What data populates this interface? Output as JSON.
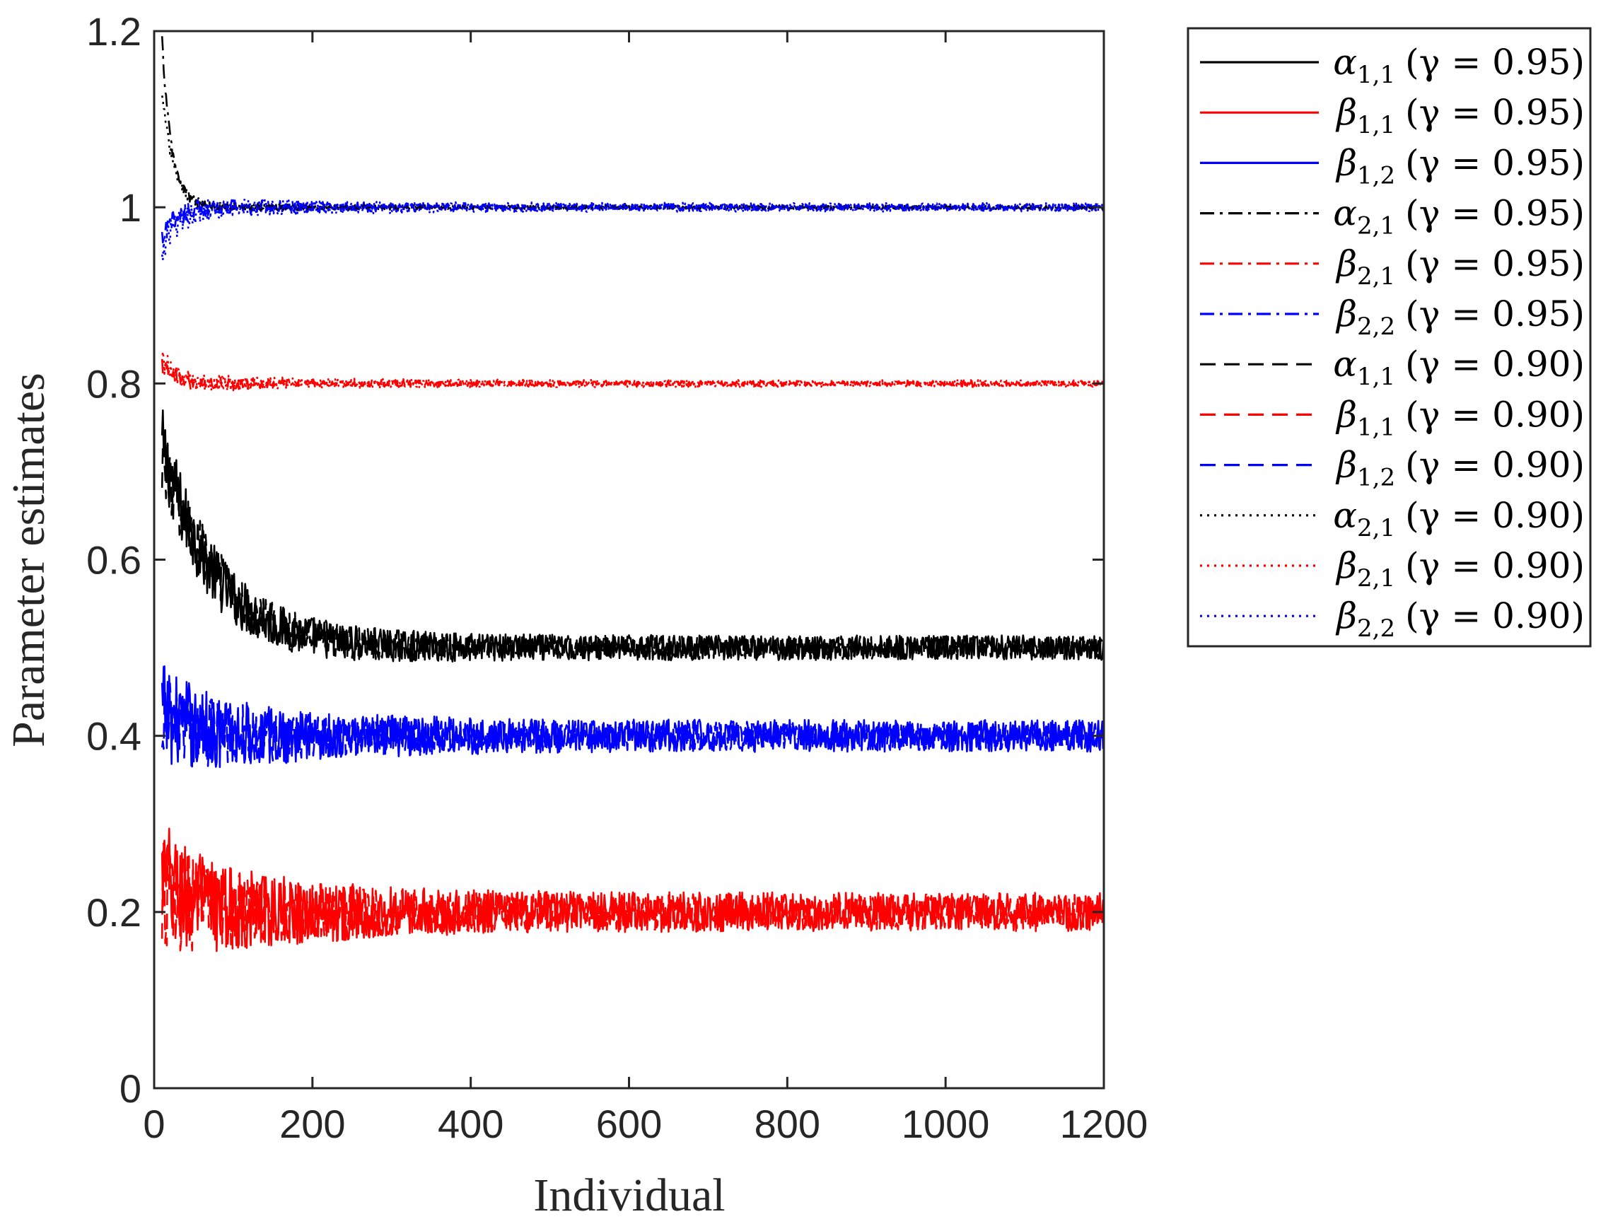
{
  "chart_data": {
    "type": "line",
    "xlabel": "Individual",
    "ylabel": "Parameter estimates",
    "xlim": [
      0,
      1200
    ],
    "ylim": [
      0,
      1.2
    ],
    "xticks": [
      0,
      200,
      400,
      600,
      800,
      1000,
      1200
    ],
    "yticks": [
      0,
      0.2,
      0.4,
      0.6,
      0.8,
      1,
      1.2
    ],
    "xtick_labels": [
      "0",
      "200",
      "400",
      "600",
      "800",
      "1000",
      "1200"
    ],
    "ytick_labels": [
      "0",
      "0.2",
      "0.4",
      "0.6",
      "0.8",
      "1",
      "1.2"
    ],
    "legend_position": "outside right, top",
    "series": [
      {
        "name": "α1,1 (γ = 0.95)",
        "sym": "α",
        "sub": "1,1",
        "gamma": "(γ = 0.95)",
        "color": "#000000",
        "style": "solid",
        "x_start": 10,
        "start": 0.73,
        "end": 0.5,
        "tau": 65,
        "noise": 0.014
      },
      {
        "name": "β1,1 (γ = 0.95)",
        "sym": "β",
        "sub": "1,1",
        "gamma": "(γ = 0.95)",
        "color": "#ff0000",
        "style": "solid",
        "x_start": 10,
        "start": 0.24,
        "end": 0.2,
        "tau": 40,
        "noise": 0.022
      },
      {
        "name": "β1,2 (γ = 0.95)",
        "sym": "β",
        "sub": "1,2",
        "gamma": "(γ = 0.95)",
        "color": "#0000ff",
        "style": "solid",
        "x_start": 10,
        "start": 0.43,
        "end": 0.4,
        "tau": 40,
        "noise": 0.018
      },
      {
        "name": "α2,1 (γ = 0.95)",
        "sym": "α",
        "sub": "2,1",
        "gamma": "(γ = 0.95)",
        "color": "#000000",
        "style": "dashdot",
        "x_start": 10,
        "start": 1.19,
        "end": 1.0,
        "tau": 12,
        "noise": 0.002
      },
      {
        "name": "β2,1 (γ = 0.95)",
        "sym": "β",
        "sub": "2,1",
        "gamma": "(γ = 0.95)",
        "color": "#ff0000",
        "style": "dashdot",
        "x_start": 10,
        "start": 0.82,
        "end": 0.8,
        "tau": 15,
        "noise": 0.003
      },
      {
        "name": "β2,2 (γ = 0.95)",
        "sym": "β",
        "sub": "2,2",
        "gamma": "(γ = 0.95)",
        "color": "#0000ff",
        "style": "dashdot",
        "x_start": 10,
        "start": 0.96,
        "end": 1.0,
        "tau": 15,
        "noise": 0.004
      },
      {
        "name": "α1,1 (γ = 0.90)",
        "sym": "α",
        "sub": "1,1",
        "gamma": "(γ = 0.90)",
        "color": "#000000",
        "style": "dashed",
        "x_start": 10,
        "start": 0.72,
        "end": 0.5,
        "tau": 70,
        "noise": 0.013
      },
      {
        "name": "β1,1 (γ = 0.90)",
        "sym": "β",
        "sub": "1,1",
        "gamma": "(γ = 0.90)",
        "color": "#ff0000",
        "style": "dashed",
        "x_start": 10,
        "start": 0.22,
        "end": 0.2,
        "tau": 40,
        "noise": 0.02
      },
      {
        "name": "β1,2 (γ = 0.90)",
        "sym": "β",
        "sub": "1,2",
        "gamma": "(γ = 0.90)",
        "color": "#0000ff",
        "style": "dashed",
        "x_start": 10,
        "start": 0.42,
        "end": 0.4,
        "tau": 40,
        "noise": 0.016
      },
      {
        "name": "α2,1 (γ = 0.90)",
        "sym": "α",
        "sub": "2,1",
        "gamma": "(γ = 0.90)",
        "color": "#000000",
        "style": "dotted",
        "x_start": 10,
        "start": 1.13,
        "end": 1.0,
        "tau": 15,
        "noise": 0.002
      },
      {
        "name": "β2,1 (γ = 0.90)",
        "sym": "β",
        "sub": "2,1",
        "gamma": "(γ = 0.90)",
        "color": "#ff0000",
        "style": "dotted",
        "x_start": 10,
        "start": 0.83,
        "end": 0.8,
        "tau": 18,
        "noise": 0.004
      },
      {
        "name": "β2,2 (γ = 0.90)",
        "sym": "β",
        "sub": "2,2",
        "gamma": "(γ = 0.90)",
        "color": "#0000ff",
        "style": "dotted",
        "x_start": 10,
        "start": 0.95,
        "end": 1.0,
        "tau": 20,
        "noise": 0.005
      }
    ]
  }
}
